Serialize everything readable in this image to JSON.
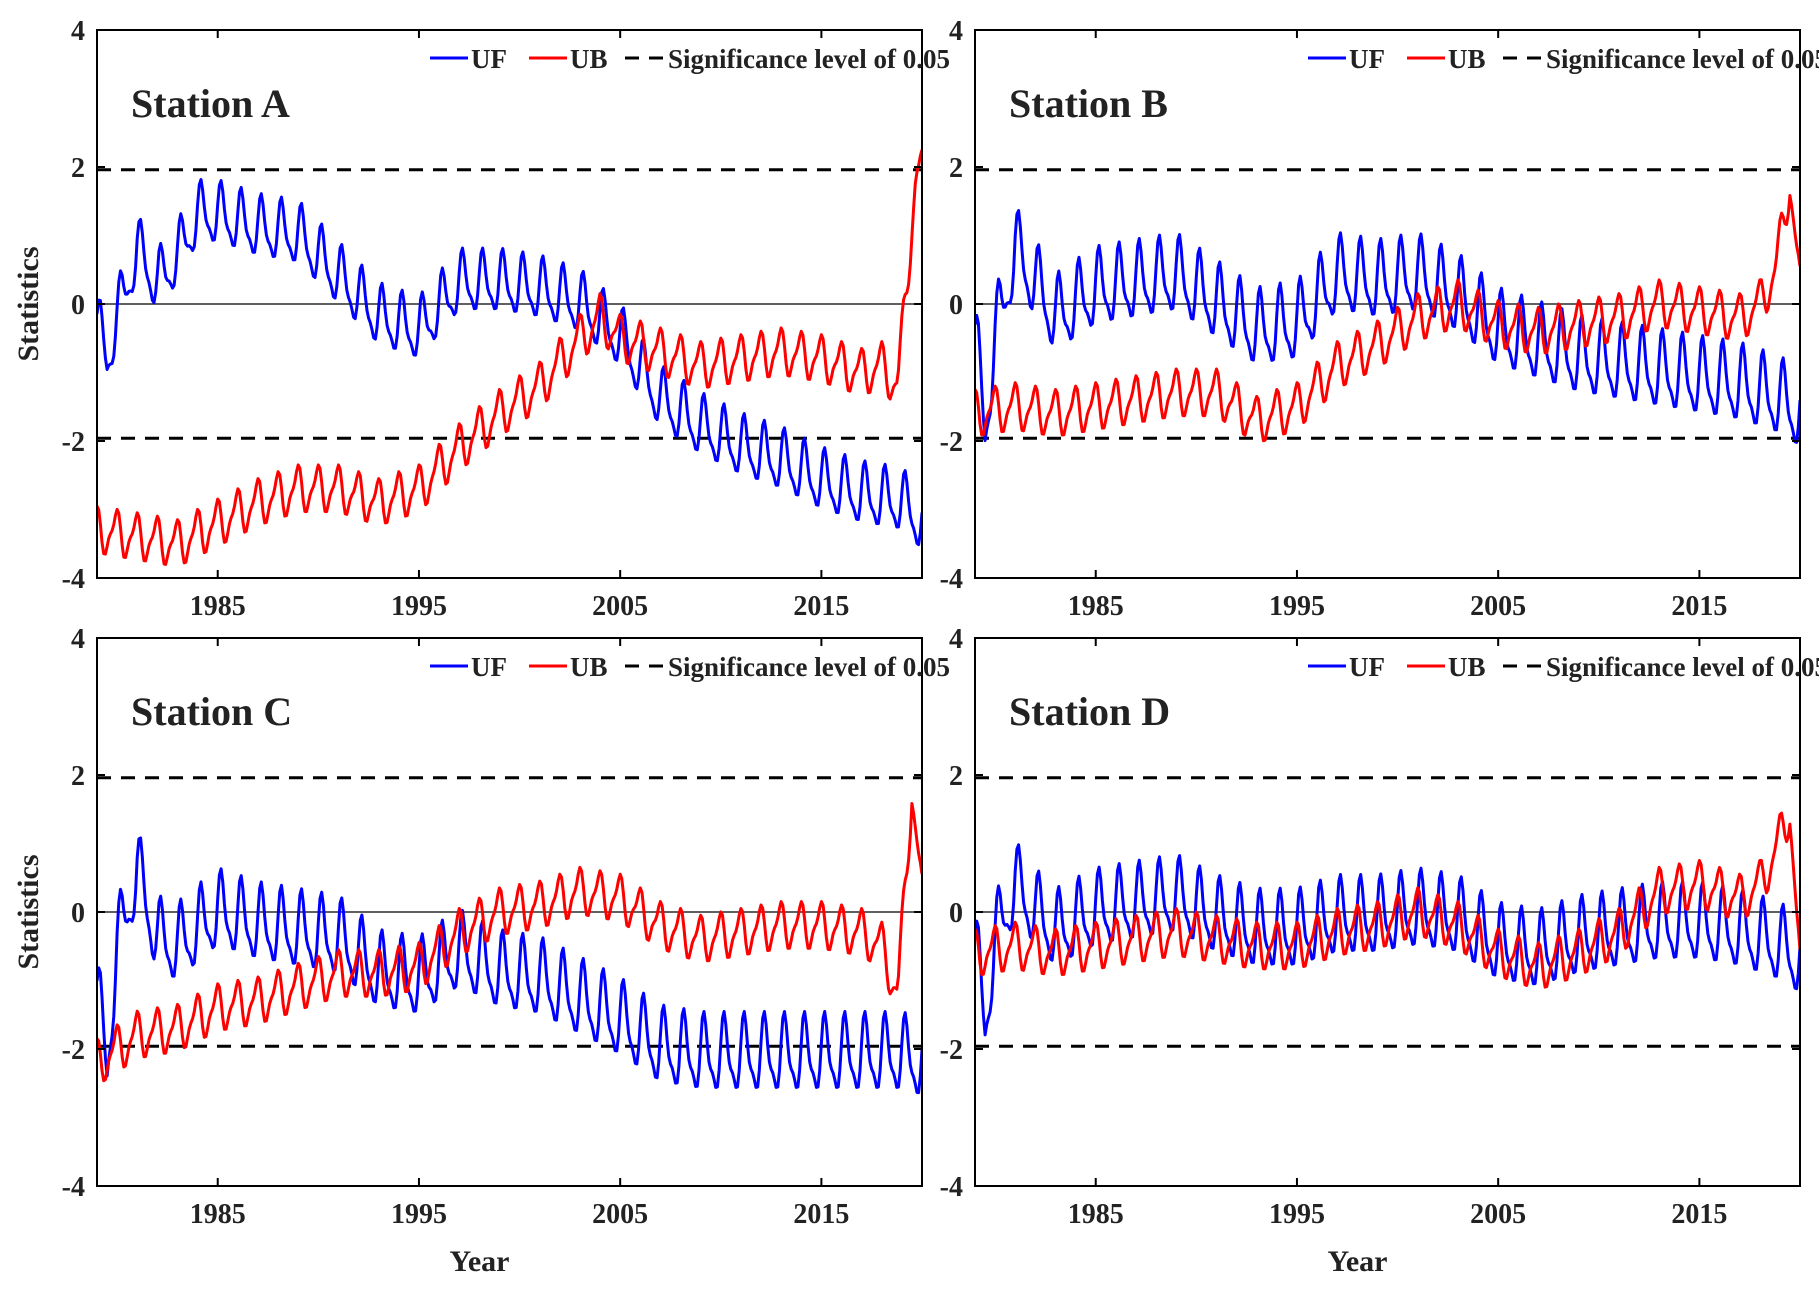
{
  "chart_data": [
    {
      "type": "line",
      "panel": "Station A",
      "title": "Station A",
      "xlabel": "",
      "ylabel": "Statistics",
      "xlim": [
        1979,
        2020
      ],
      "ylim": [
        -4,
        4
      ],
      "xticks": [
        "1985",
        "1995",
        "2005",
        "2015"
      ],
      "yticks": [
        "-4",
        "-2",
        "0",
        "2",
        "4"
      ],
      "grid": false,
      "legend": "top-right",
      "significance_level": 1.96,
      "series": [
        {
          "name": "UF",
          "color": "#0000ff",
          "amplitude": 0.4,
          "x": [
            1979,
            1979.5,
            1980,
            1981,
            1982,
            1983,
            1984,
            1985,
            1987,
            1989,
            1991,
            1993,
            1995,
            1997,
            1999,
            2001,
            2003,
            2005,
            2007,
            2009,
            2011,
            2013,
            2015,
            2017,
            2019,
            2020
          ],
          "y": [
            -0.3,
            -0.8,
            -0.2,
            0.8,
            0.3,
            0.7,
            1.3,
            1.3,
            1.1,
            1.0,
            0.4,
            -0.2,
            -0.4,
            0.3,
            0.3,
            0.2,
            0.0,
            -0.5,
            -1.4,
            -1.8,
            -2.1,
            -2.3,
            -2.6,
            -2.8,
            -2.9,
            -3.2
          ]
        },
        {
          "name": "UB",
          "color": "#ff0000",
          "amplitude": 0.3,
          "x": [
            1979,
            1981,
            1983,
            1985,
            1987,
            1989,
            1991,
            1993,
            1995,
            1997,
            1999,
            2001,
            2003,
            2004,
            2005,
            2007,
            2009,
            2011,
            2013,
            2015,
            2017,
            2018,
            2018.8,
            2019.3,
            2019.7,
            2020
          ],
          "y": [
            -3.3,
            -3.4,
            -3.5,
            -3.2,
            -2.9,
            -2.7,
            -2.7,
            -2.9,
            -2.7,
            -2.1,
            -1.6,
            -1.2,
            -0.5,
            -0.2,
            -0.5,
            -0.7,
            -0.9,
            -0.8,
            -0.7,
            -0.8,
            -1.0,
            -0.9,
            -1.2,
            0.5,
            1.9,
            1.9
          ]
        }
      ]
    },
    {
      "type": "line",
      "panel": "Station B",
      "title": "Station B",
      "xlabel": "",
      "ylabel": "",
      "xlim": [
        1979,
        2020
      ],
      "ylim": [
        -4,
        4
      ],
      "xticks": [
        "1985",
        "1995",
        "2005",
        "2015"
      ],
      "yticks": [
        "-4",
        "-2",
        "0",
        "2",
        "4"
      ],
      "grid": false,
      "legend": "top-right",
      "significance_level": 1.96,
      "series": [
        {
          "name": "UF",
          "color": "#0000ff",
          "amplitude": 0.5,
          "x": [
            1979,
            1979.5,
            1980,
            1981,
            1982,
            1983,
            1985,
            1987,
            1989,
            1991,
            1993,
            1995,
            1997,
            1999,
            2001,
            2003,
            2005,
            2007,
            2009,
            2011,
            2013,
            2015,
            2017,
            2019,
            2020
          ],
          "y": [
            -0.5,
            -1.8,
            -0.5,
            0.8,
            0.3,
            -0.2,
            0.2,
            0.3,
            0.4,
            0.0,
            -0.4,
            -0.3,
            0.4,
            0.3,
            0.4,
            0.1,
            -0.4,
            -0.6,
            -0.8,
            -0.9,
            -1.0,
            -1.1,
            -1.2,
            -1.4,
            -1.6
          ]
        },
        {
          "name": "UB",
          "color": "#ff0000",
          "amplitude": 0.3,
          "x": [
            1979,
            1981,
            1983,
            1985,
            1987,
            1989,
            1991,
            1993,
            1995,
            1997,
            1999,
            2001,
            2003,
            2005,
            2007,
            2009,
            2011,
            2013,
            2015,
            2017,
            2018,
            2018.8,
            2019.5,
            2020
          ],
          "y": [
            -1.6,
            -1.5,
            -1.6,
            -1.5,
            -1.4,
            -1.3,
            -1.3,
            -1.7,
            -1.5,
            -0.9,
            -0.6,
            -0.2,
            0.0,
            -0.3,
            -0.4,
            -0.3,
            -0.2,
            0.0,
            -0.1,
            -0.2,
            0.0,
            0.5,
            1.8,
            0.2
          ]
        }
      ]
    },
    {
      "type": "line",
      "panel": "Station C",
      "title": "Station C",
      "xlabel": "",
      "ylabel": "Statistics",
      "xlim": [
        1979,
        2020
      ],
      "ylim": [
        -4,
        4
      ],
      "xticks": [
        "1985",
        "1995",
        "2005",
        "2015"
      ],
      "yticks": [
        "-4",
        "-2",
        "0",
        "2",
        "4"
      ],
      "grid": false,
      "legend": "top-right",
      "significance_level": 1.96,
      "series": [
        {
          "name": "UF",
          "color": "#0000ff",
          "amplitude": 0.5,
          "x": [
            1979,
            1979.5,
            1980,
            1981,
            1982,
            1983,
            1985,
            1987,
            1989,
            1991,
            1993,
            1995,
            1997,
            1999,
            2001,
            2003,
            2005,
            2007,
            2009,
            2011,
            2013,
            2015,
            2017,
            2019,
            2020
          ],
          "y": [
            -1.2,
            -2.2,
            -0.5,
            0.6,
            -0.4,
            -0.5,
            0.0,
            -0.2,
            -0.3,
            -0.4,
            -0.9,
            -1.0,
            -0.6,
            -0.9,
            -1.0,
            -1.3,
            -1.6,
            -2.0,
            -2.1,
            -2.1,
            -2.1,
            -2.1,
            -2.1,
            -2.1,
            -2.2
          ]
        },
        {
          "name": "UB",
          "color": "#ff0000",
          "amplitude": 0.3,
          "x": [
            1979,
            1981,
            1983,
            1985,
            1987,
            1989,
            1991,
            1993,
            1995,
            1997,
            1999,
            2001,
            2003,
            2005,
            2007,
            2009,
            2011,
            2013,
            2015,
            2017,
            2018,
            2018.8,
            2019.5,
            2020
          ],
          "y": [
            -2.2,
            -1.8,
            -1.7,
            -1.4,
            -1.3,
            -1.1,
            -0.9,
            -0.9,
            -0.8,
            -0.3,
            0.0,
            0.1,
            0.3,
            0.2,
            -0.2,
            -0.4,
            -0.3,
            -0.2,
            -0.2,
            -0.3,
            -0.5,
            -1.2,
            1.8,
            0.2
          ]
        }
      ]
    },
    {
      "type": "line",
      "panel": "Station D",
      "title": "Station D",
      "xlabel": "",
      "ylabel": "",
      "xlim": [
        1979,
        2020
      ],
      "ylim": [
        -4,
        4
      ],
      "xticks": [
        "1985",
        "1995",
        "2005",
        "2015"
      ],
      "yticks": [
        "-4",
        "-2",
        "0",
        "2",
        "4"
      ],
      "grid": false,
      "legend": "top-right",
      "significance_level": 1.96,
      "series": [
        {
          "name": "UF",
          "color": "#0000ff",
          "amplitude": 0.5,
          "x": [
            1979,
            1979.5,
            1980,
            1981,
            1982,
            1983,
            1985,
            1987,
            1989,
            1991,
            1993,
            1995,
            1997,
            1999,
            2001,
            2003,
            2005,
            2007,
            2009,
            2011,
            2013,
            2015,
            2017,
            2019,
            2020
          ],
          "y": [
            -0.5,
            -1.6,
            -0.4,
            0.4,
            0.0,
            -0.3,
            0.0,
            0.1,
            0.2,
            -0.1,
            -0.3,
            -0.3,
            -0.1,
            -0.1,
            0.0,
            -0.1,
            -0.5,
            -0.6,
            -0.4,
            -0.3,
            -0.2,
            -0.2,
            -0.3,
            -0.5,
            -0.7
          ]
        },
        {
          "name": "UB",
          "color": "#ff0000",
          "amplitude": 0.3,
          "x": [
            1979,
            1981,
            1983,
            1985,
            1987,
            1989,
            1991,
            1993,
            1995,
            1997,
            1999,
            2001,
            2003,
            2005,
            2007,
            2009,
            2011,
            2013,
            2015,
            2017,
            2018,
            2018.8,
            2019.5,
            2020
          ],
          "y": [
            -0.6,
            -0.5,
            -0.6,
            -0.5,
            -0.4,
            -0.3,
            -0.4,
            -0.5,
            -0.5,
            -0.3,
            -0.2,
            0.0,
            -0.2,
            -0.6,
            -0.8,
            -0.6,
            -0.3,
            0.3,
            0.4,
            0.2,
            0.4,
            0.9,
            1.5,
            -0.9
          ]
        }
      ]
    }
  ],
  "xlabel_shared": "Year",
  "significance_legend_label": "Significance level of 0.05"
}
